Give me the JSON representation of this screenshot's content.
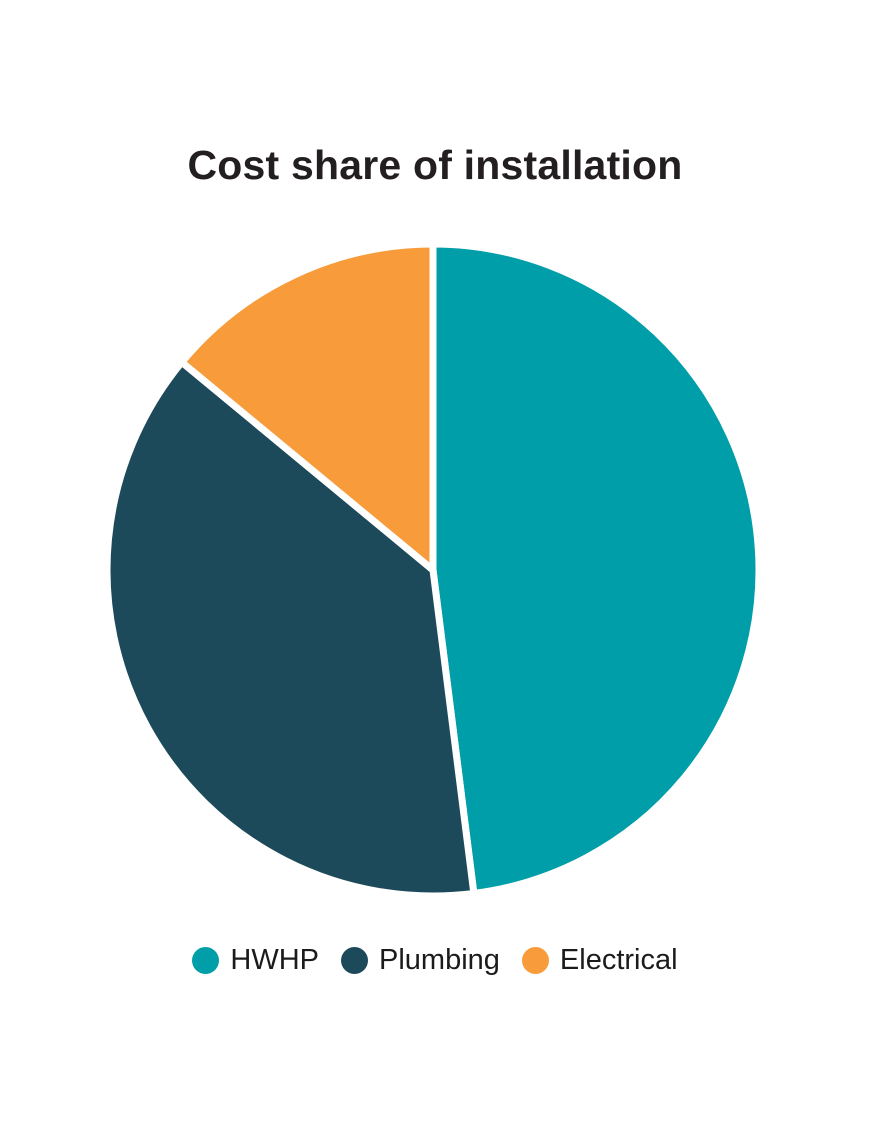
{
  "page": {
    "background": "#ffffff"
  },
  "chart_data": {
    "type": "pie",
    "title": "Cost share of installation",
    "start_angle_deg": 0,
    "direction": "clockwise",
    "legend_position": "bottom",
    "values_are_estimated_percent": true,
    "slices": [
      {
        "label": "HWHP",
        "value": 48,
        "color": "#009EA8"
      },
      {
        "label": "Plumbing",
        "value": 38,
        "color": "#1D4A5B"
      },
      {
        "label": "Electrical",
        "value": 14,
        "color": "#F89B3B"
      }
    ]
  },
  "colors": {
    "title_text": "#231F20",
    "legend_text": "#1B1B1B",
    "slice_gap": "#FFFFFF"
  }
}
